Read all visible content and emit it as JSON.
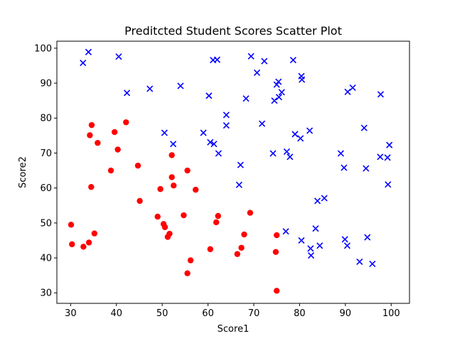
{
  "chart_data": {
    "type": "scatter",
    "title": "Preditcted Student Scores Scatter Plot",
    "xlabel": "Score1",
    "ylabel": "Score2",
    "xlim": [
      27,
      104
    ],
    "ylim": [
      27,
      102
    ],
    "xticks": [
      30,
      40,
      50,
      60,
      70,
      80,
      90,
      100
    ],
    "yticks": [
      30,
      40,
      50,
      60,
      70,
      80,
      90,
      100
    ],
    "grid": false,
    "series": [
      {
        "marker": "circle",
        "color": "#ff0000",
        "points": [
          [
            30.1,
            49.5
          ],
          [
            30.3,
            43.9
          ],
          [
            32.8,
            43.2
          ],
          [
            34.0,
            44.4
          ],
          [
            35.2,
            47.0
          ],
          [
            34.5,
            60.3
          ],
          [
            34.2,
            75.1
          ],
          [
            34.6,
            78.0
          ],
          [
            35.9,
            72.9
          ],
          [
            39.6,
            76.0
          ],
          [
            40.3,
            71.0
          ],
          [
            42.1,
            78.8
          ],
          [
            38.8,
            65.0
          ],
          [
            44.7,
            66.4
          ],
          [
            45.1,
            56.3
          ],
          [
            49.0,
            51.8
          ],
          [
            49.6,
            59.7
          ],
          [
            50.3,
            49.7
          ],
          [
            50.6,
            48.8
          ],
          [
            51.2,
            46.0
          ],
          [
            51.6,
            46.9
          ],
          [
            52.1,
            69.4
          ],
          [
            52.1,
            63.1
          ],
          [
            52.5,
            60.7
          ],
          [
            54.7,
            52.2
          ],
          [
            55.5,
            65.0
          ],
          [
            55.5,
            35.6
          ],
          [
            56.2,
            39.3
          ],
          [
            57.3,
            59.5
          ],
          [
            60.5,
            42.5
          ],
          [
            61.8,
            50.2
          ],
          [
            62.2,
            52.0
          ],
          [
            66.4,
            41.1
          ],
          [
            67.3,
            42.9
          ],
          [
            67.9,
            46.7
          ],
          [
            69.2,
            52.9
          ],
          [
            75.0,
            46.5
          ],
          [
            74.8,
            41.7
          ],
          [
            75.0,
            30.6
          ]
        ]
      },
      {
        "marker": "x",
        "color": "#0000ff",
        "points": [
          [
            32.7,
            95.8
          ],
          [
            33.9,
            98.9
          ],
          [
            40.5,
            97.6
          ],
          [
            42.3,
            87.2
          ],
          [
            47.3,
            88.4
          ],
          [
            50.5,
            75.8
          ],
          [
            52.4,
            72.6
          ],
          [
            54.0,
            89.2
          ],
          [
            59.0,
            75.8
          ],
          [
            60.2,
            86.4
          ],
          [
            60.5,
            73.1
          ],
          [
            61.3,
            72.6
          ],
          [
            61.1,
            96.6
          ],
          [
            62.0,
            96.7
          ],
          [
            62.3,
            69.9
          ],
          [
            64.0,
            80.9
          ],
          [
            64.0,
            77.9
          ],
          [
            67.1,
            66.6
          ],
          [
            66.8,
            60.9
          ],
          [
            68.3,
            85.6
          ],
          [
            69.4,
            97.7
          ],
          [
            70.7,
            93.0
          ],
          [
            71.8,
            78.4
          ],
          [
            72.3,
            96.3
          ],
          [
            74.2,
            69.9
          ],
          [
            74.5,
            85.0
          ],
          [
            75.0,
            89.6
          ],
          [
            75.4,
            90.4
          ],
          [
            75.5,
            86.0
          ],
          [
            76.1,
            87.4
          ],
          [
            77.0,
            47.6
          ],
          [
            77.2,
            70.4
          ],
          [
            77.9,
            68.9
          ],
          [
            78.6,
            96.6
          ],
          [
            79.0,
            75.4
          ],
          [
            80.2,
            74.2
          ],
          [
            80.4,
            92.0
          ],
          [
            80.5,
            91.0
          ],
          [
            80.4,
            45.0
          ],
          [
            82.2,
            76.4
          ],
          [
            82.4,
            42.7
          ],
          [
            82.5,
            40.7
          ],
          [
            83.5,
            48.4
          ],
          [
            83.9,
            56.3
          ],
          [
            84.4,
            43.5
          ],
          [
            85.4,
            57.1
          ],
          [
            89.0,
            69.9
          ],
          [
            89.7,
            65.8
          ],
          [
            89.9,
            45.3
          ],
          [
            90.4,
            43.5
          ],
          [
            90.5,
            87.5
          ],
          [
            91.6,
            88.7
          ],
          [
            93.1,
            38.9
          ],
          [
            94.1,
            77.2
          ],
          [
            94.5,
            65.6
          ],
          [
            94.8,
            45.9
          ],
          [
            95.9,
            38.3
          ],
          [
            97.7,
            86.8
          ],
          [
            97.6,
            68.9
          ],
          [
            99.2,
            68.7
          ],
          [
            99.3,
            61.0
          ],
          [
            99.6,
            72.3
          ]
        ]
      }
    ]
  }
}
